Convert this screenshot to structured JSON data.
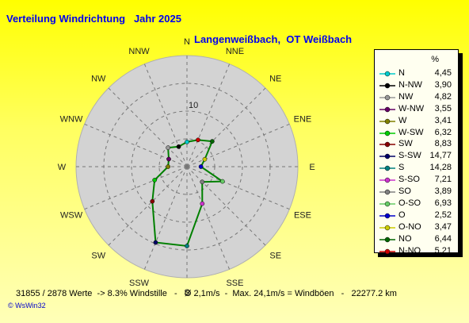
{
  "title": "Verteilung Windrichtung   Jahr 2025",
  "subtitle": "Langenweißbach,  OT Weißbach",
  "legend_header": "%",
  "footer": "31855 / 2878 Werte  -> 8.3% Windstille   -   Ø 2,1m/s  -  Max. 24,1m/s = Windböen   -   22277.2 km",
  "credit": "© WsWin32",
  "chart_data": {
    "type": "radar",
    "ring_label": "10",
    "rmax": 20,
    "rings": [
      5,
      10,
      15,
      20
    ],
    "direction_labels": [
      "N",
      "NNE",
      "NE",
      "ENE",
      "E",
      "ESE",
      "SE",
      "SSE",
      "S",
      "SSW",
      "SW",
      "WSW",
      "W",
      "WNW",
      "NW",
      "NNW"
    ],
    "line_color": "#008000",
    "disc_color": "#d3d3d3",
    "series": [
      {
        "name": "N",
        "value_label": "4,45",
        "value": 4.45,
        "angle": 0,
        "color": "#00cccc"
      },
      {
        "name": "N-NW",
        "value_label": "3,90",
        "value": 3.9,
        "angle": 337.5,
        "color": "#000000"
      },
      {
        "name": "NW",
        "value_label": "4,82",
        "value": 4.82,
        "angle": 315,
        "color": "#999999"
      },
      {
        "name": "W-NW",
        "value_label": "3,55",
        "value": 3.55,
        "angle": 292.5,
        "color": "#660066"
      },
      {
        "name": "W",
        "value_label": "3,41",
        "value": 3.41,
        "angle": 270,
        "color": "#808000"
      },
      {
        "name": "W-SW",
        "value_label": "6,32",
        "value": 6.32,
        "angle": 247.5,
        "color": "#00cc00"
      },
      {
        "name": "SW",
        "value_label": "8,83",
        "value": 8.83,
        "angle": 225,
        "color": "#880000"
      },
      {
        "name": "S-SW",
        "value_label": "14,77",
        "value": 14.77,
        "angle": 202.5,
        "color": "#000066"
      },
      {
        "name": "S",
        "value_label": "14,28",
        "value": 14.28,
        "angle": 180,
        "color": "#008080"
      },
      {
        "name": "S-SO",
        "value_label": "7,21",
        "value": 7.21,
        "angle": 157.5,
        "color": "#cc33cc"
      },
      {
        "name": "SO",
        "value_label": "3,89",
        "value": 3.89,
        "angle": 135,
        "color": "#808080"
      },
      {
        "name": "O-SO",
        "value_label": "6,93",
        "value": 6.93,
        "angle": 112.5,
        "color": "#66cc66"
      },
      {
        "name": "O",
        "value_label": "2,52",
        "value": 2.52,
        "angle": 90,
        "color": "#0000cc"
      },
      {
        "name": "O-NO",
        "value_label": "3,47",
        "value": 3.47,
        "angle": 67.5,
        "color": "#cccc00"
      },
      {
        "name": "NO",
        "value_label": "6,44",
        "value": 6.44,
        "angle": 45,
        "color": "#006600"
      },
      {
        "name": "N-NO",
        "value_label": "5,21",
        "value": 5.21,
        "angle": 22.5,
        "color": "#cc0000"
      }
    ]
  }
}
